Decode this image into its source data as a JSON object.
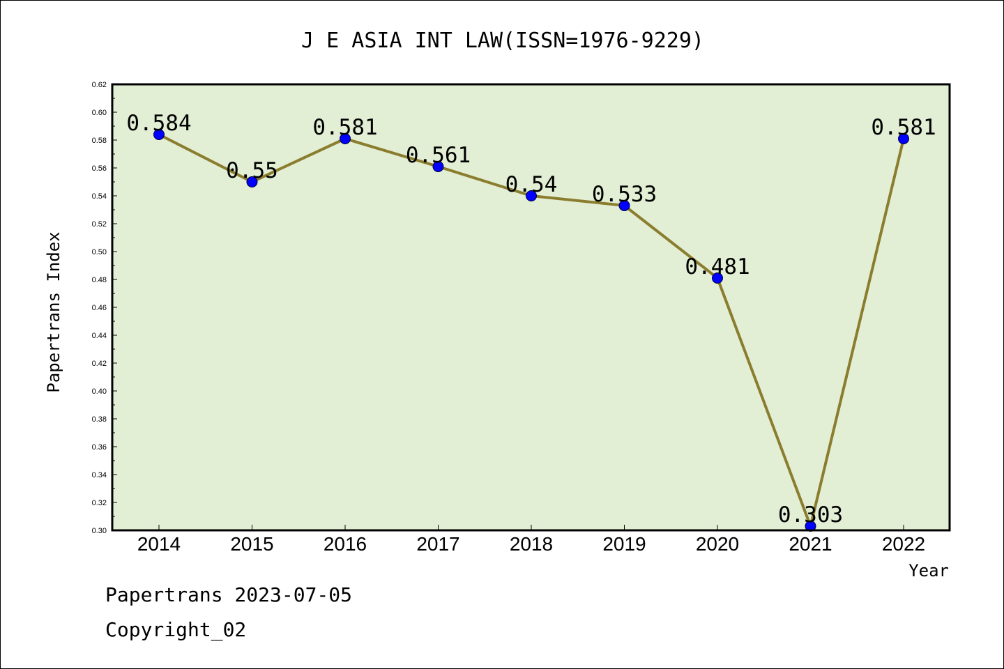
{
  "chart_data": {
    "type": "line",
    "title": "J E ASIA INT LAW(ISSN=1976-9229)",
    "xlabel": "Year",
    "ylabel": "Papertrans Index",
    "categories": [
      "2014",
      "2015",
      "2016",
      "2017",
      "2018",
      "2019",
      "2020",
      "2021",
      "2022"
    ],
    "series": [
      {
        "values": [
          0.584,
          0.55,
          0.581,
          0.561,
          0.54,
          0.533,
          0.481,
          0.303,
          0.581
        ]
      }
    ],
    "data_labels": [
      "0.584",
      "0.55",
      "0.581",
      "0.561",
      "0.54",
      "0.533",
      "0.481",
      "0.303",
      "0.581"
    ],
    "ylim": [
      0.3,
      0.62
    ],
    "yticks": [
      "0.30",
      "0.32",
      "0.34",
      "0.36",
      "0.38",
      "0.40",
      "0.42",
      "0.44",
      "0.46",
      "0.48",
      "0.50",
      "0.52",
      "0.54",
      "0.56",
      "0.58",
      "0.60",
      "0.62"
    ],
    "grid": false,
    "legend": "none",
    "colors": {
      "plot_background": "#e2efd5",
      "line": "#8b7d2e",
      "marker": "#0000ff"
    }
  },
  "footer": {
    "date_line": "Papertrans 2023-07-05",
    "copyright_line": "Copyright_02"
  }
}
